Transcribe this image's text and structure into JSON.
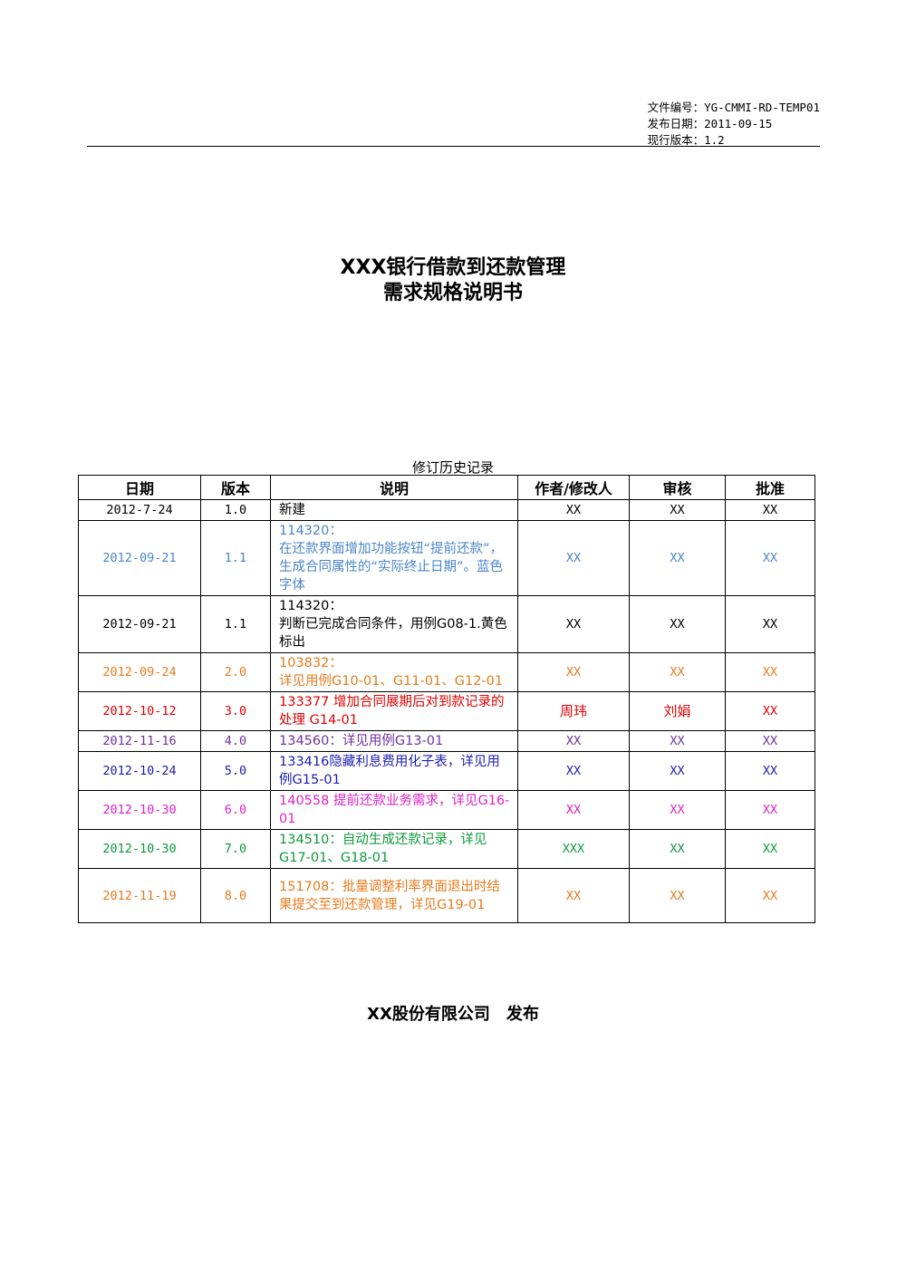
{
  "doc_meta": {
    "file_no": "文件编号：YG-CMMI-RD-TEMP01",
    "release_date": "发布日期：2011-09-15",
    "version": "现行版本：1.2"
  },
  "title": {
    "line1": "XXX银行借款到还款管理",
    "line2": "需求规格说明书"
  },
  "history": {
    "caption": "修订历史记录",
    "headers": [
      "日期",
      "版本",
      "说明",
      "作者/修改人",
      "审核",
      "批准"
    ],
    "rows": [
      {
        "date": "2012-7-24",
        "version": "1.0",
        "desc": "新建",
        "author": "XX",
        "review": "XX",
        "approve": "XX",
        "color": "#000000"
      },
      {
        "date": "2012-09-21",
        "version": "1.1",
        "desc": "114320：\n在还款界面增加功能按钮“提前还款”，生成合同属性的“实际终止日期”。蓝色字体",
        "author": "XX",
        "review": "XX",
        "approve": "XX",
        "color": "#4a86c8"
      },
      {
        "date": "2012-09-21",
        "version": "1.1",
        "desc": "114320：\n判断已完成合同条件，用例G08-1.黄色标出",
        "author": "XX",
        "review": "XX",
        "approve": "XX",
        "color": "#000000"
      },
      {
        "date": "2012-09-24",
        "version": "2.0",
        "desc": "103832：\n详见用例G10-01、G11-01、G12-01",
        "author": "XX",
        "review": "XX",
        "approve": "XX",
        "color": "#e87a1c"
      },
      {
        "date": "2012-10-12",
        "version": "3.0",
        "desc": "133377 增加合同展期后对到款记录的处理 G14-01",
        "author": "周玮",
        "review": "刘娟",
        "approve": "XX",
        "color": "#e00000"
      },
      {
        "date": "2012-11-16",
        "version": "4.0",
        "desc": "134560：详见用例G13-01",
        "author": "XX",
        "review": "XX",
        "approve": "XX",
        "color": "#7030a0"
      },
      {
        "date": "2012-10-24",
        "version": "5.0",
        "desc": "133416隐藏利息费用化子表，详见用例G15-01",
        "author": "XX",
        "review": "XX",
        "approve": "XX",
        "color": "#1c1cb0"
      },
      {
        "date": "2012-10-30",
        "version": "6.0",
        "desc": "140558 提前还款业务需求，详见G16-01",
        "author": "XX",
        "review": "XX",
        "approve": "XX",
        "color": "#e020c8"
      },
      {
        "date": "2012-10-30",
        "version": "7.0",
        "desc": "134510：自动生成还款记录，详见G17-01、G18-01",
        "author": "XXX",
        "review": "XX",
        "approve": "XX",
        "color": "#0f9a3c"
      },
      {
        "date": "2012-11-19",
        "version": "8.0",
        "desc": "151708：批量调整利率界面退出时结果提交至到还款管理，详见G19-01",
        "author": "XX",
        "review": "XX",
        "approve": "XX",
        "color": "#e87a1c"
      }
    ]
  },
  "footer": "XX股份有限公司　发布"
}
